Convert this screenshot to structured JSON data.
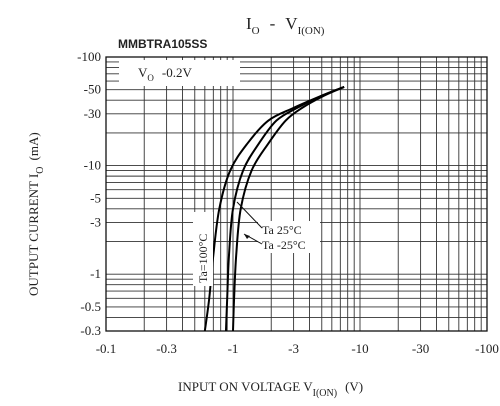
{
  "chart_data": {
    "type": "line",
    "title_main": "I",
    "title_main_sub": "O",
    "title_sep": "-",
    "title_v": "V",
    "title_v_sub": "I(ON)",
    "part_number": "MMBTRA105SS",
    "condition_main": "V",
    "condition_sub": "O",
    "condition_value": "-0.2V",
    "xlabel_main": "INPUT ON VOLTAGE V",
    "xlabel_sub": "I(ON)",
    "xlabel_unit": "(V)",
    "ylabel_main": "OUTPUT CURRENT I",
    "ylabel_sub": "O",
    "ylabel_unit": "(mA)",
    "x_scale": "log",
    "y_scale": "log",
    "x_abs_range": [
      0.1,
      100
    ],
    "y_abs_range": [
      0.3,
      100
    ],
    "x_ticks": [
      {
        "value": 0.1,
        "label": "-0.1"
      },
      {
        "value": 0.3,
        "label": "-0.3"
      },
      {
        "value": 1,
        "label": "-1"
      },
      {
        "value": 3,
        "label": "-3"
      },
      {
        "value": 10,
        "label": "-10"
      },
      {
        "value": 30,
        "label": "-30"
      },
      {
        "value": 100,
        "label": "-100"
      }
    ],
    "y_ticks": [
      {
        "value": 0.3,
        "label": "-0.3"
      },
      {
        "value": 0.5,
        "label": "-0.5"
      },
      {
        "value": 1,
        "label": "-1"
      },
      {
        "value": 3,
        "label": "-3"
      },
      {
        "value": 5,
        "label": "-5"
      },
      {
        "value": 10,
        "label": "-10"
      },
      {
        "value": 30,
        "label": "-30"
      },
      {
        "value": 50,
        "label": "-50"
      },
      {
        "value": 100,
        "label": "-100"
      }
    ],
    "series": [
      {
        "name": "Ta=100°C",
        "points": [
          [
            0.6,
            0.3
          ],
          [
            0.65,
            0.6
          ],
          [
            0.7,
            1.5
          ],
          [
            0.78,
            4
          ],
          [
            0.95,
            9
          ],
          [
            1.3,
            16
          ],
          [
            1.9,
            26
          ],
          [
            3,
            34
          ],
          [
            5,
            44
          ],
          [
            7.5,
            53
          ]
        ]
      },
      {
        "name": "Ta 25°C",
        "points": [
          [
            0.88,
            0.3
          ],
          [
            0.9,
            0.6
          ],
          [
            0.93,
            1.5
          ],
          [
            1.0,
            4
          ],
          [
            1.2,
            9
          ],
          [
            1.6,
            16
          ],
          [
            2.2,
            26
          ],
          [
            3.2,
            34
          ],
          [
            5,
            44
          ],
          [
            7.5,
            53
          ]
        ]
      },
      {
        "name": "Ta -25°C",
        "points": [
          [
            1.0,
            0.3
          ],
          [
            1.02,
            0.6
          ],
          [
            1.06,
            1.5
          ],
          [
            1.15,
            4
          ],
          [
            1.4,
            9
          ],
          [
            1.9,
            16
          ],
          [
            2.6,
            26
          ],
          [
            3.5,
            34
          ],
          [
            5.2,
            44
          ],
          [
            7.5,
            53
          ]
        ]
      }
    ],
    "annotations": {
      "ta100": "Ta=100°C",
      "ta25": "Ta  25°C",
      "ta_m25": "Ta  -25°C"
    },
    "grid": true
  }
}
